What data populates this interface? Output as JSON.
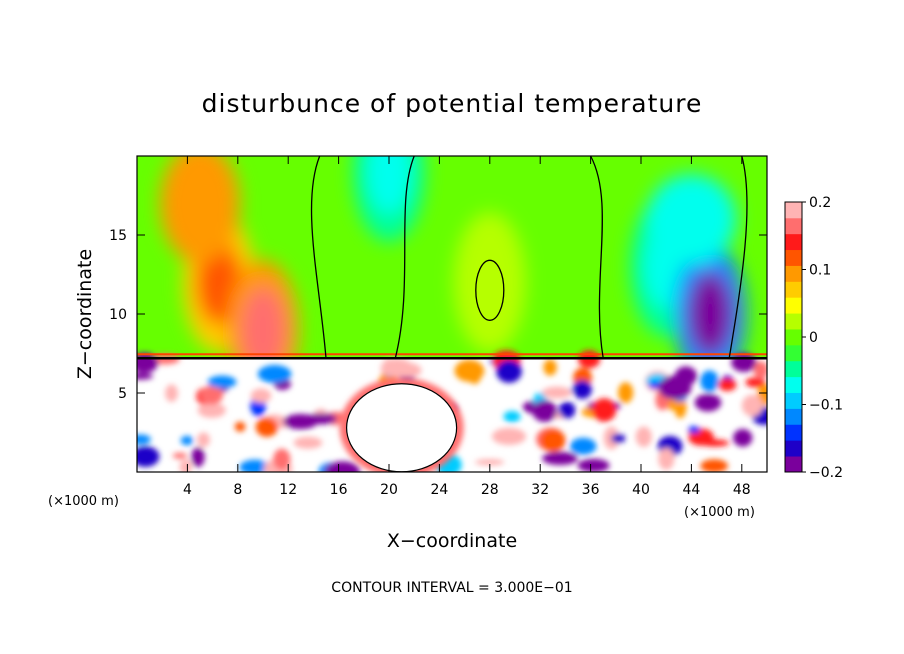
{
  "chart_data": {
    "type": "heatmap",
    "title": "disturbunce of potential temperature",
    "xlabel": "X−coordinate",
    "ylabel": "Z−coordinate",
    "x_unit_label_left": "(×1000 m)",
    "x_unit_label_right": "(×1000 m)",
    "xlim": [
      0,
      50
    ],
    "ylim": [
      0,
      20
    ],
    "x_ticks": [
      4,
      8,
      12,
      16,
      20,
      24,
      28,
      32,
      36,
      40,
      44,
      48
    ],
    "x_tick_labels": [
      "4",
      "8",
      "12",
      "16",
      "20",
      "24",
      "28",
      "32",
      "36",
      "40",
      "44",
      "48"
    ],
    "y_ticks": [
      5,
      10,
      15
    ],
    "y_tick_labels": [
      "5",
      "10",
      "15"
    ],
    "colorbar": {
      "range": [
        -0.2,
        0.2
      ],
      "ticks": [
        0.2,
        0.1,
        0,
        -0.1,
        -0.2
      ],
      "tick_labels": [
        "0.2",
        "0.1",
        "0",
        "−0.1",
        "−0.2"
      ],
      "colors": [
        "#7a009c",
        "#1e00c8",
        "#0033ff",
        "#0088ff",
        "#00ccff",
        "#00ffee",
        "#00ff99",
        "#33ff33",
        "#66ff00",
        "#b6ff00",
        "#ffff00",
        "#ffcc00",
        "#ff9900",
        "#ff5500",
        "#ff1a1a",
        "#ff6e6e",
        "#ffb4b4"
      ]
    },
    "annotation": "CONTOUR INTERVAL = 3.000E−01",
    "field_features": {
      "inversion_height": 7.2,
      "upper_anomalies": [
        {
          "x": 6.5,
          "z": 12,
          "value": 0.11
        },
        {
          "x": 10,
          "z": 9,
          "value": 0.16
        },
        {
          "x": 20,
          "z": 19,
          "value": -0.07
        },
        {
          "x": 28,
          "z": 12,
          "value": 0.02
        },
        {
          "x": 42,
          "z": 13,
          "value": -0.08
        },
        {
          "x": 45.5,
          "z": 10,
          "value": -0.19
        }
      ],
      "lower_blob": {
        "x": 21,
        "z": 2.8,
        "value": 0.25
      }
    }
  }
}
